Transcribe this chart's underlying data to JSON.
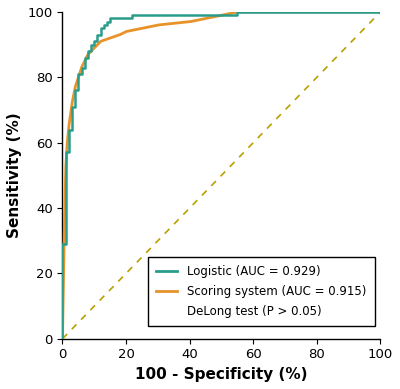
{
  "title": "",
  "xlabel": "100 - Specificity (%)",
  "ylabel": "Sensitivity (%)",
  "xlim": [
    0,
    100
  ],
  "ylim": [
    0,
    100
  ],
  "xticks": [
    0,
    20,
    40,
    60,
    80,
    100
  ],
  "yticks": [
    0,
    20,
    40,
    60,
    80,
    100
  ],
  "logistic_color": "#2A9D8A",
  "scoring_color": "#E8922A",
  "diagonal_color": "#B8A000",
  "legend_labels": [
    "Logistic (AUC = 0.929)",
    "Scoring system (AUC = 0.915)",
    "DeLong test (P > 0.05)"
  ],
  "logistic_fpr": [
    0,
    0,
    1,
    1,
    2,
    2,
    3,
    3,
    4,
    4,
    5,
    5,
    6,
    6,
    7,
    7,
    8,
    8,
    9,
    9,
    10,
    10,
    11,
    11,
    12,
    12,
    13,
    13,
    14,
    14,
    15,
    15,
    16,
    16,
    17,
    18,
    20,
    22,
    25,
    55,
    100
  ],
  "logistic_tpr": [
    0,
    29,
    29,
    57,
    57,
    64,
    64,
    71,
    71,
    76,
    76,
    81,
    81,
    83,
    83,
    86,
    86,
    88,
    88,
    90,
    90,
    91,
    91,
    93,
    93,
    95,
    95,
    96,
    96,
    97,
    97,
    98,
    98,
    98,
    98,
    98,
    98,
    99,
    99,
    100,
    100
  ],
  "scoring_fpr": [
    0,
    0.5,
    1,
    1.5,
    2,
    3,
    4,
    5,
    6,
    7,
    8,
    9,
    10,
    12,
    15,
    18,
    20,
    25,
    30,
    40,
    55,
    100
  ],
  "scoring_tpr": [
    0,
    30,
    52,
    60,
    65,
    72,
    77,
    80,
    83,
    85,
    87,
    88,
    89,
    91,
    92,
    93,
    94,
    95,
    96,
    97,
    100,
    100
  ],
  "background_color": "#FFFFFF",
  "legend_fontsize": 8.5,
  "axis_label_fontsize": 11,
  "tick_fontsize": 9.5
}
